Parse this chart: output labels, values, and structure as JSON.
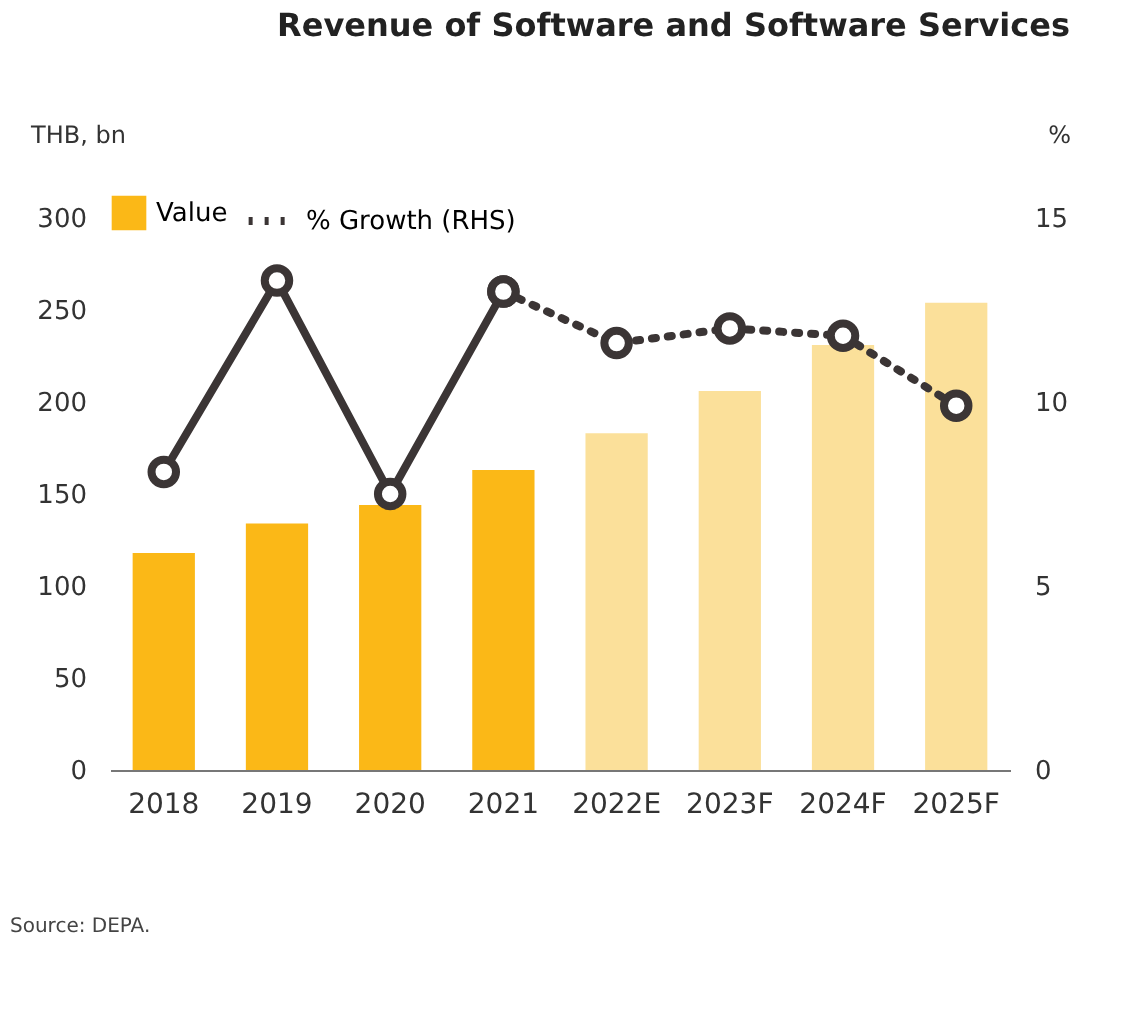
{
  "chart_data": {
    "type": "bar",
    "title": "Revenue of Software and Software Services",
    "ylabel": "THB, bn",
    "y2label": "%",
    "categories": [
      "2018",
      "2019",
      "2020",
      "2021",
      "2022E",
      "2023F",
      "2024F",
      "2025F"
    ],
    "series": [
      {
        "name": "Value",
        "colors": [
          "#fbb817",
          "#fbb817",
          "#fbb817",
          "#fbb817",
          "#fbe09a",
          "#fbe09a",
          "#fbe09a",
          "#fbe09a"
        ],
        "values": [
          118,
          134,
          144,
          163,
          183,
          206,
          231,
          254
        ]
      },
      {
        "type": "line",
        "axis": "y2",
        "color": "#3b3535",
        "line_style": "solid",
        "values": [
          8.1,
          13.3,
          7.5,
          13.0,
          null,
          null,
          null,
          null
        ]
      },
      {
        "name": "% Growth (RHS)",
        "type": "line",
        "axis": "y2",
        "color": "#3b3535",
        "line_style": "dotted",
        "values": [
          null,
          null,
          null,
          13.0,
          11.6,
          12.0,
          11.8,
          9.9
        ]
      }
    ],
    "ylim": [
      0,
      300
    ],
    "yticks": [
      0,
      50,
      100,
      150,
      200,
      250,
      300
    ],
    "y2lim": [
      0,
      15
    ],
    "y2ticks": [
      0,
      5,
      10,
      15
    ],
    "marker": "circle",
    "legend": "top",
    "grid": false,
    "annotations": [
      "Source: DEPA."
    ]
  }
}
